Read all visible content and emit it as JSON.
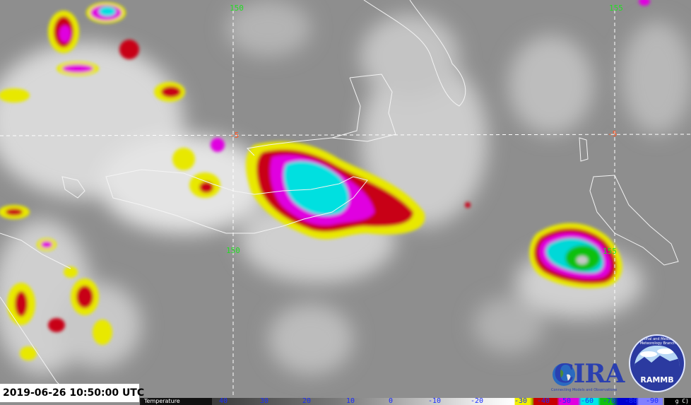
{
  "timestamp": "2019-06-26 10:50:00 UTC",
  "grid": {
    "lon_labels": [
      "150",
      "155"
    ],
    "lat_labels": [
      "-5"
    ],
    "colors": {
      "lon": "#22dd22",
      "lat": "#ff5522",
      "lines": "#ffffff"
    }
  },
  "colorbar": {
    "title": "Temperature",
    "unit_fragment": "g C)",
    "ticks": [
      "40",
      "30",
      "20",
      "10",
      "0",
      "-10",
      "-20",
      "-30",
      "-40",
      "-50",
      "-60",
      "-70",
      "-80",
      "-90"
    ],
    "colors": [
      "#3a3a3a",
      "#ffffff",
      "#f0f000",
      "#9a9a00",
      "#c80000",
      "#e000e0",
      "#00e8e8",
      "#10c010",
      "#0000d0",
      "#8080ff"
    ]
  },
  "logos": {
    "cira": {
      "name": "CIRA",
      "tagline": "Connecting Models and Observations"
    },
    "rammb": {
      "name": "RAMMB",
      "ring": "Regional and Mesoscale Meteorology Branch"
    }
  }
}
